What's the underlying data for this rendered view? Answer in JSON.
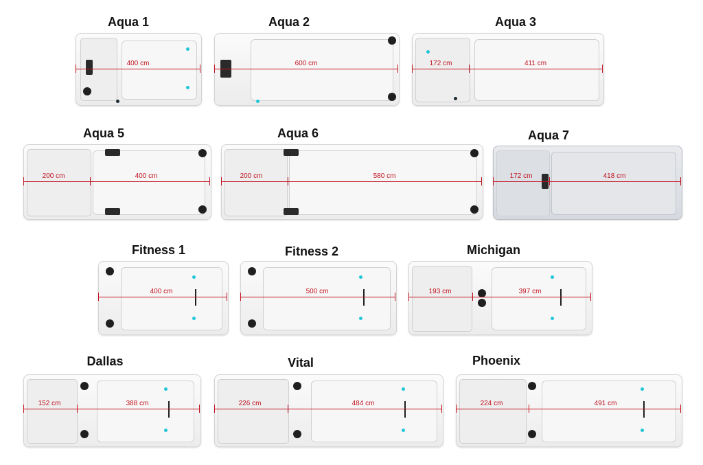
{
  "models": [
    {
      "name": "Aqua 1",
      "measurements": [
        "400 cm"
      ]
    },
    {
      "name": "Aqua 2",
      "measurements": [
        "600 cm"
      ]
    },
    {
      "name": "Aqua 3",
      "measurements": [
        "172 cm",
        "411 cm"
      ]
    },
    {
      "name": "Aqua 5",
      "measurements": [
        "200 cm",
        "400 cm"
      ]
    },
    {
      "name": "Aqua 6",
      "measurements": [
        "200 cm",
        "580 cm"
      ]
    },
    {
      "name": "Aqua 7",
      "measurements": [
        "172 cm",
        "418 cm"
      ]
    },
    {
      "name": "Fitness 1",
      "measurements": [
        "400 cm"
      ]
    },
    {
      "name": "Fitness 2",
      "measurements": [
        "500 cm"
      ]
    },
    {
      "name": "Michigan",
      "measurements": [
        "193 cm",
        "397 cm"
      ]
    },
    {
      "name": "Dallas",
      "measurements": [
        "152 cm",
        "388 cm"
      ]
    },
    {
      "name": "Vital",
      "measurements": [
        "226 cm",
        "484 cm"
      ]
    },
    {
      "name": "Phoenix",
      "measurements": [
        "224 cm",
        "491 cm"
      ]
    }
  ],
  "colors": {
    "measure_line": "#c1121f",
    "jet_cyan": "#21c6d8",
    "dark_fixture": "#1f1f1f"
  }
}
